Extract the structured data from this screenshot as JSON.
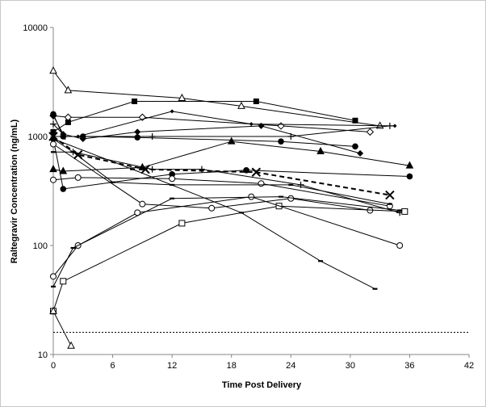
{
  "chart_data": {
    "type": "scatter",
    "xlabel": "Time Post Delivery",
    "ylabel": "Raltegravir Concentration (ng/mL)",
    "xlim": [
      0,
      42
    ],
    "ylim": [
      10,
      10000
    ],
    "y_scale": "log",
    "x_ticks": [
      "0",
      "6",
      "12",
      "18",
      "24",
      "30",
      "36",
      "42"
    ],
    "y_ticks": [
      {
        "value": 10,
        "label": "10"
      },
      {
        "value": 100,
        "label": "100"
      },
      {
        "value": 1000,
        "label": "1000"
      },
      {
        "value": 10000,
        "label": "10000"
      }
    ],
    "reference_line": {
      "y": 16,
      "style": "dotted"
    },
    "grid": false,
    "legend": "none",
    "series": [
      {
        "marker": "triangle-open",
        "dash": false,
        "points": [
          [
            0,
            4000
          ],
          [
            1.5,
            2650
          ],
          [
            13,
            2250
          ],
          [
            19,
            1900
          ],
          [
            33,
            1250
          ]
        ]
      },
      {
        "marker": "square-filled",
        "dash": false,
        "points": [
          [
            0,
            1100
          ],
          [
            1.5,
            1350
          ],
          [
            8.2,
            2100
          ],
          [
            20.5,
            2100
          ],
          [
            30.5,
            1400
          ]
        ]
      },
      {
        "marker": "diamond-open",
        "dash": false,
        "points": [
          [
            0,
            1550
          ],
          [
            1.5,
            1500
          ],
          [
            9,
            1500
          ],
          [
            23,
            1250
          ],
          [
            32,
            1100
          ]
        ]
      },
      {
        "marker": "plus",
        "dash": false,
        "points": [
          [
            0,
            1300
          ],
          [
            1.2,
            1000
          ],
          [
            10,
            1000
          ],
          [
            24,
            1000
          ],
          [
            34,
            1250
          ]
        ]
      },
      {
        "marker": "diamond-filled",
        "dash": false,
        "points": [
          [
            0,
            1550
          ],
          [
            1,
            1050
          ],
          [
            3,
            950
          ],
          [
            8.5,
            1100
          ],
          [
            21,
            1250
          ],
          [
            31,
            700
          ]
        ]
      },
      {
        "marker": "diamond-small",
        "dash": false,
        "points": [
          [
            0,
            1000
          ],
          [
            2.5,
            1000
          ],
          [
            12,
            1700
          ],
          [
            20,
            1300
          ],
          [
            34.5,
            1250
          ]
        ]
      },
      {
        "marker": "circle-filled",
        "dash": false,
        "points": [
          [
            0,
            1600
          ],
          [
            1,
            1000
          ],
          [
            3,
            1000
          ],
          [
            8.5,
            980
          ],
          [
            23,
            900
          ],
          [
            30.5,
            810
          ]
        ]
      },
      {
        "marker": "triangle-filled",
        "dash": false,
        "points": [
          [
            0,
            500
          ],
          [
            1,
            480
          ],
          [
            9,
            520
          ],
          [
            18,
            900
          ],
          [
            27,
            730
          ],
          [
            36,
            540
          ]
        ]
      },
      {
        "marker": "x",
        "dash": true,
        "points": [
          [
            0,
            1000
          ],
          [
            2.5,
            680
          ],
          [
            9.3,
            500
          ],
          [
            20.5,
            470
          ],
          [
            34,
            290
          ]
        ]
      },
      {
        "marker": "circle-filled",
        "dash": false,
        "points": [
          [
            0,
            950
          ],
          [
            1,
            330
          ],
          [
            12,
            450
          ],
          [
            19.5,
            490
          ],
          [
            36,
            430
          ]
        ]
      },
      {
        "marker": "plus",
        "dash": false,
        "points": [
          [
            0,
            950
          ],
          [
            2,
            720
          ],
          [
            10,
            500
          ],
          [
            15,
            500
          ],
          [
            25,
            360
          ],
          [
            35,
            200
          ]
        ]
      },
      {
        "marker": "circle-open",
        "dash": false,
        "points": [
          [
            0,
            400
          ],
          [
            2.5,
            420
          ],
          [
            12,
            410
          ],
          [
            21,
            370
          ],
          [
            34,
            230
          ]
        ]
      },
      {
        "marker": "minus",
        "dash": false,
        "points": [
          [
            0,
            720
          ],
          [
            2,
            720
          ],
          [
            6,
            380
          ],
          [
            12,
            360
          ],
          [
            24,
            360
          ],
          [
            34,
            240
          ]
        ]
      },
      {
        "marker": "circle-open",
        "dash": false,
        "points": [
          [
            0,
            850
          ],
          [
            9,
            240
          ],
          [
            16,
            220
          ],
          [
            24,
            270
          ],
          [
            32,
            210
          ]
        ]
      },
      {
        "marker": "square-open",
        "dash": false,
        "points": [
          [
            0,
            25
          ],
          [
            1,
            47
          ],
          [
            13,
            160
          ],
          [
            22.8,
            230
          ],
          [
            35.5,
            205
          ]
        ]
      },
      {
        "marker": "circle-open",
        "dash": false,
        "points": [
          [
            0,
            52
          ],
          [
            2.5,
            100
          ],
          [
            8.5,
            200
          ],
          [
            20,
            280
          ],
          [
            35,
            100
          ]
        ]
      },
      {
        "marker": "minus",
        "dash": false,
        "points": [
          [
            0,
            42
          ],
          [
            2,
            95
          ],
          [
            12,
            270
          ],
          [
            23,
            280
          ],
          [
            35,
            210
          ]
        ]
      },
      {
        "marker": "minus",
        "dash": false,
        "points": [
          [
            0,
            950
          ],
          [
            8,
            500
          ],
          [
            19,
            200
          ],
          [
            27,
            72
          ],
          [
            32.5,
            40
          ]
        ]
      },
      {
        "marker": "triangle-open",
        "dash": false,
        "points": [
          [
            0,
            25
          ],
          [
            1.8,
            12
          ]
        ]
      }
    ]
  }
}
